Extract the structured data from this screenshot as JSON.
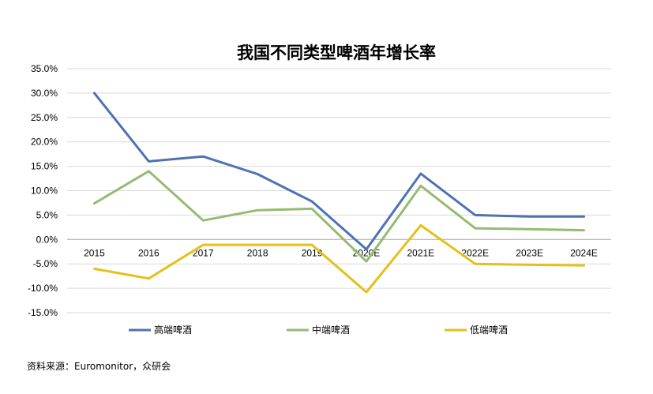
{
  "chart_data": {
    "type": "line",
    "title": "我国不同类型啤酒年增长率",
    "categories": [
      "2015",
      "2016",
      "2017",
      "2018",
      "2019",
      "2020E",
      "2021E",
      "2022E",
      "2023E",
      "2024E"
    ],
    "y_ticks": [
      "35.0%",
      "30.0%",
      "25.0%",
      "20.0%",
      "15.0%",
      "10.0%",
      "5.0%",
      "0.0%",
      "-5.0%",
      "-10.0%",
      "-15.0%"
    ],
    "ylim": [
      -15,
      35
    ],
    "y_unit": "%",
    "grid": true,
    "legend_position": "bottom",
    "series": [
      {
        "name": "高端啤酒",
        "color": "#4F72B2",
        "values": [
          30.0,
          16.0,
          17.0,
          13.4,
          7.8,
          -2.0,
          13.5,
          5.0,
          4.7,
          4.7
        ]
      },
      {
        "name": "中端啤酒",
        "color": "#95BB72",
        "values": [
          7.4,
          14.0,
          3.9,
          6.0,
          6.3,
          -4.5,
          11.0,
          2.3,
          2.1,
          1.9
        ]
      },
      {
        "name": "低端啤酒",
        "color": "#E4C018",
        "values": [
          -6.0,
          -8.0,
          -1.1,
          -1.1,
          -1.1,
          -10.8,
          2.9,
          -5.0,
          -5.2,
          -5.3
        ]
      }
    ]
  },
  "source_text": "资料来源：Euromonitor，众研会"
}
